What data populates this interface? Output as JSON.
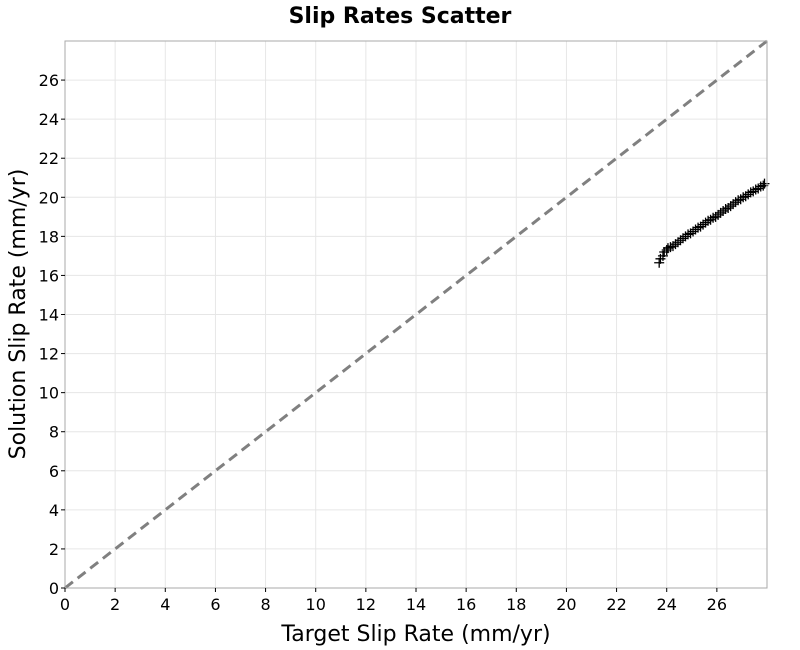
{
  "chart_data": {
    "type": "scatter",
    "title": "Slip Rates Scatter",
    "xlabel": "Target Slip Rate (mm/yr)",
    "ylabel": "Solution Slip Rate (mm/yr)",
    "xlim": [
      0,
      28
    ],
    "ylim": [
      0,
      28
    ],
    "xticks": [
      "0",
      "2",
      "4",
      "6",
      "8",
      "10",
      "12",
      "14",
      "16",
      "18",
      "20",
      "22",
      "24",
      "26"
    ],
    "yticks": [
      "0",
      "2",
      "4",
      "6",
      "8",
      "10",
      "12",
      "14",
      "16",
      "18",
      "20",
      "22",
      "24",
      "26"
    ],
    "grid": true,
    "marker": "plus",
    "colors": {
      "points": "#000000",
      "reference_line": "#808080",
      "grid": "#e6e6e6",
      "frame": "#aaaaaa"
    },
    "reference_line": {
      "style": "dashed",
      "from": [
        0,
        0
      ],
      "to": [
        28,
        28
      ]
    },
    "series": [
      {
        "x": [
          23.7,
          23.75,
          23.85,
          23.9,
          24.0,
          24.05,
          24.15,
          24.25,
          24.35,
          24.45,
          24.55,
          24.65,
          24.75,
          24.85,
          24.95,
          25.05,
          25.15,
          25.25,
          25.35,
          25.45,
          25.55,
          25.65,
          25.75,
          25.85,
          25.95,
          26.05,
          26.15,
          26.25,
          26.35,
          26.45,
          26.55,
          26.65,
          26.75,
          26.85,
          26.95,
          27.05,
          27.15,
          27.25,
          27.35,
          27.45,
          27.55,
          27.65,
          27.75,
          27.85,
          27.9
        ],
        "y": [
          16.65,
          16.85,
          17.0,
          17.2,
          17.3,
          17.4,
          17.45,
          17.5,
          17.6,
          17.7,
          17.8,
          17.9,
          18.0,
          18.1,
          18.15,
          18.25,
          18.35,
          18.45,
          18.5,
          18.6,
          18.7,
          18.8,
          18.85,
          18.95,
          19.0,
          19.1,
          19.2,
          19.3,
          19.4,
          19.45,
          19.55,
          19.65,
          19.75,
          19.85,
          19.9,
          20.0,
          20.05,
          20.15,
          20.25,
          20.3,
          20.4,
          20.45,
          20.55,
          20.6,
          20.7
        ]
      }
    ]
  }
}
